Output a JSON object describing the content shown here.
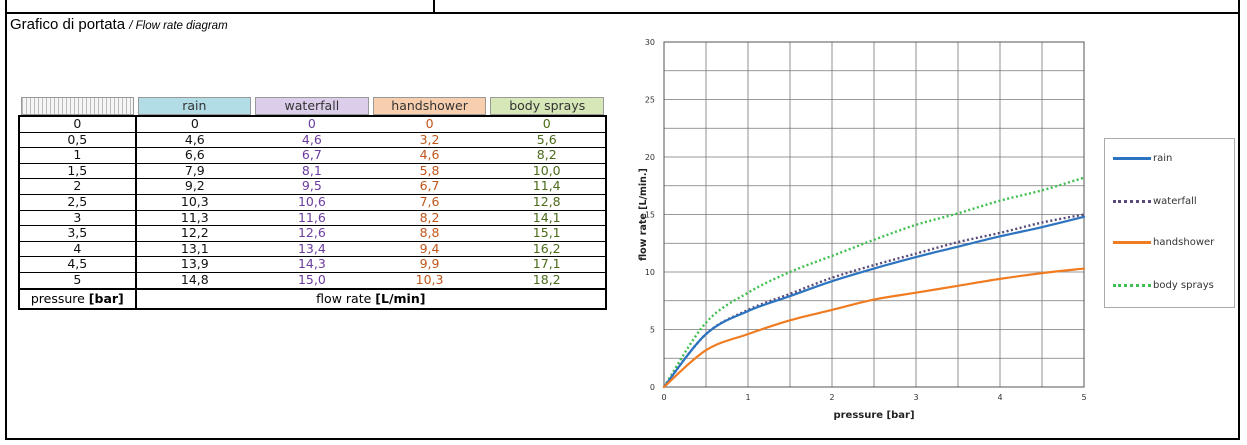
{
  "header": {
    "title": "Grafico di portata",
    "subtitle": "/ Flow rate diagram"
  },
  "table": {
    "columns": [
      "rain",
      "waterfall",
      "handshower",
      "body sprays"
    ],
    "rows": [
      [
        "0",
        "0",
        "0",
        "0",
        "0"
      ],
      [
        "0,5",
        "4,6",
        "4,6",
        "3,2",
        "5,6"
      ],
      [
        "1",
        "6,6",
        "6,7",
        "4,6",
        "8,2"
      ],
      [
        "1,5",
        "7,9",
        "8,1",
        "5,8",
        "10,0"
      ],
      [
        "2",
        "9,2",
        "9,5",
        "6,7",
        "11,4"
      ],
      [
        "2,5",
        "10,3",
        "10,6",
        "7,6",
        "12,8"
      ],
      [
        "3",
        "11,3",
        "11,6",
        "8,2",
        "14,1"
      ],
      [
        "3,5",
        "12,2",
        "12,6",
        "8,8",
        "15,1"
      ],
      [
        "4",
        "13,1",
        "13,4",
        "9,4",
        "16,2"
      ],
      [
        "4,5",
        "13,9",
        "14,3",
        "9,9",
        "17,1"
      ],
      [
        "5",
        "14,8",
        "15,0",
        "10,3",
        "18,2"
      ]
    ],
    "footer": {
      "pressure_label": "pressure ",
      "pressure_unit": "[bar]",
      "flow_label": "flow rate ",
      "flow_unit": "[L/min]"
    }
  },
  "chart_data": {
    "type": "line",
    "xlabel": "pressure [bar]",
    "ylabel": "flow rate [L/min.]",
    "xlim": [
      0,
      5
    ],
    "ylim": [
      0,
      30
    ],
    "x_ticks": [
      "0",
      "1",
      "2",
      "3",
      "4",
      "5"
    ],
    "y_ticks": [
      "0",
      "5",
      "10",
      "15",
      "20",
      "25",
      "30"
    ],
    "grid": true,
    "legend_position": "right",
    "x": [
      0,
      0.5,
      1,
      1.5,
      2,
      2.5,
      3,
      3.5,
      4,
      4.5,
      5
    ],
    "series": [
      {
        "name": "rain",
        "color": "#2c74c0",
        "style": "solid",
        "values": [
          0,
          4.6,
          6.6,
          7.9,
          9.2,
          10.3,
          11.3,
          12.2,
          13.1,
          13.9,
          14.8
        ]
      },
      {
        "name": "waterfall",
        "color": "#5a4a7a",
        "style": "dotted",
        "values": [
          0,
          4.6,
          6.7,
          8.1,
          9.5,
          10.6,
          11.6,
          12.6,
          13.4,
          14.3,
          15.0
        ]
      },
      {
        "name": "handshower",
        "color": "#f07c22",
        "style": "solid",
        "values": [
          0,
          3.2,
          4.6,
          5.8,
          6.7,
          7.6,
          8.2,
          8.8,
          9.4,
          9.9,
          10.3
        ]
      },
      {
        "name": "body sprays",
        "color": "#3fbf4f",
        "style": "dotted",
        "values": [
          0,
          5.6,
          8.2,
          10.0,
          11.4,
          12.8,
          14.1,
          15.1,
          16.2,
          17.1,
          18.2
        ]
      }
    ]
  }
}
